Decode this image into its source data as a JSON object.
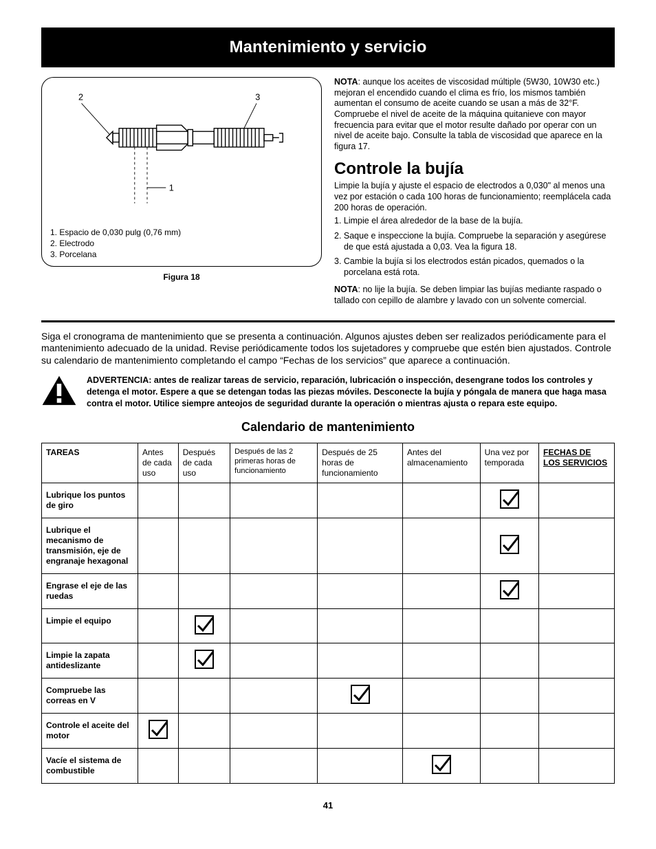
{
  "header": {
    "title": "Mantenimiento y servicio"
  },
  "figure": {
    "callout_labels": {
      "n1": "1",
      "n2": "2",
      "n3": "3"
    },
    "legend": {
      "l1": "1.    Espacio de 0,030 pulg (0,76 mm)",
      "l2": "2.    Electrodo",
      "l3": "3.    Porcelana"
    },
    "caption": "Figura 18",
    "stroke": "#000000",
    "bg": "#ffffff"
  },
  "right": {
    "note1_label": "NOTA",
    "note1_body": ": aunque los aceites de viscosidad múltiple (5W30, 10W30 etc.) mejoran el encendido cuando el clima es frío, los mismos también aumentan el consumo de aceite cuando se usan a más de 32°F. Compruebe el nivel de aceite de la máquina quitanieve con mayor frecuencia para evitar que el motor resulte dañado por operar con un nivel de aceite bajo. Consulte la tabla de viscosidad que aparece en la figura 17.",
    "section_heading": "Controle la bujía",
    "intro": "Limpie la bujía y ajuste el espacio de electrodos a 0,030\" al menos una vez por estación o cada 100 horas de funcionamiento; reemplácela cada 200 horas de operación.",
    "step1": "1.  Limpie el área alrededor de la base de la bujía.",
    "step2": "2. Saque e inspeccione la bujía. Compruebe la separación y asegúrese de que está ajustada a 0,03. Vea la figura 18.",
    "step3": "3. Cambie la bujía si los electrodos están picados, quemados o la porcelana está rota.",
    "note2_label": "NOTA",
    "note2_body": ": no lije la bujía. Se deben limpiar las bujías mediante raspado o tallado con cepillo de alambre y lavado con un solvente comercial."
  },
  "body_para": "Siga el cronograma de mantenimiento que se presenta a continuación. Algunos ajustes deben ser realizados periódicamente para el mantenimiento adecuado de la unidad. Revise periódicamente todos los sujetadores y compruebe que estén bien ajustados. Controle su calendario de mantenimiento completando el campo “Fechas de los servicios” que aparece a continuación.",
  "warning": {
    "text": "ADVERTENCIA: antes de realizar tareas de servicio, reparación, lubricación o inspección, desengrane todos los controles y detenga el motor. Espere a que se detengan todas las piezas móviles. Desconecte la bujía y póngala de manera que haga masa contra el motor. Utilice siempre anteojos de seguridad durante la operación o mientras ajusta o repara este equipo.",
    "icon_fill": "#000000"
  },
  "calendar": {
    "heading": "Calendario de mantenimiento",
    "columns": [
      "TAREAS",
      "Antes de cada uso",
      "Después de cada uso",
      "Después de las 2 primeras horas de funcionamiento",
      "Después de 25 horas de funcionamiento",
      "Antes del almacenamiento",
      "Una vez por temporada",
      "FECHAS DE LOS SERVICIOS"
    ],
    "rows": [
      {
        "task": "Lubrique los puntos de giro",
        "checks": [
          false,
          false,
          false,
          false,
          false,
          true,
          false
        ]
      },
      {
        "task": "Lubrique el mecanismo de transmisión, eje de engranaje hexagonal",
        "checks": [
          false,
          false,
          false,
          false,
          false,
          true,
          false
        ]
      },
      {
        "task": "Engrase el eje de las ruedas",
        "checks": [
          false,
          false,
          false,
          false,
          false,
          true,
          false
        ]
      },
      {
        "task": "Limpie el equipo",
        "checks": [
          false,
          true,
          false,
          false,
          false,
          false,
          false
        ]
      },
      {
        "task": "Limpie la zapata antideslizante",
        "checks": [
          false,
          true,
          false,
          false,
          false,
          false,
          false
        ]
      },
      {
        "task": "Compruebe las correas en V",
        "checks": [
          false,
          false,
          false,
          true,
          false,
          false,
          false
        ]
      },
      {
        "task": "Controle el aceite del motor",
        "checks": [
          true,
          false,
          false,
          false,
          false,
          false,
          false
        ]
      },
      {
        "task": "Vacíe el sistema de combustible",
        "checks": [
          false,
          false,
          false,
          false,
          true,
          false,
          false
        ]
      }
    ],
    "check_stroke": "#000000"
  },
  "page_number": "41"
}
